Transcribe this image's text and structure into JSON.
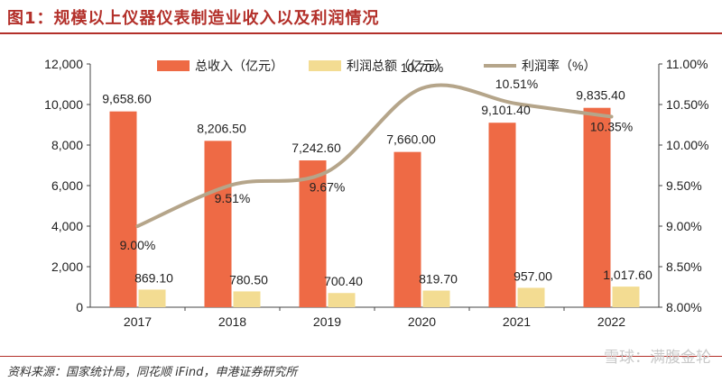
{
  "title": "图1：规模以上仪器仪表制造业收入以及利润情况",
  "source": "资料来源：国家统计局，同花顺 iFind，申港证券研究所",
  "watermark": "雪球：满腹金轮",
  "chart_data": {
    "type": "bar",
    "categories": [
      "2017",
      "2018",
      "2019",
      "2020",
      "2021",
      "2022"
    ],
    "series": [
      {
        "name": "总收入（亿元）",
        "type": "bar",
        "axis": "left",
        "color": "#ee6a45",
        "values": [
          9658.6,
          8206.5,
          7242.6,
          7660.0,
          9101.4,
          9835.4
        ],
        "labels": [
          "9,658.60",
          "8,206.50",
          "7,242.60",
          "7,660.00",
          "9,101.40",
          "9,835.40"
        ]
      },
      {
        "name": "利润总额（亿元）",
        "type": "bar",
        "axis": "left",
        "color": "#f3dc92",
        "values": [
          869.1,
          780.5,
          700.4,
          819.7,
          957.0,
          1017.6
        ],
        "labels": [
          "869.10",
          "780.50",
          "700.40",
          "819.70",
          "957.00",
          "1,017.60"
        ]
      },
      {
        "name": "利润率（%）",
        "type": "line",
        "axis": "right",
        "color": "#b5a58a",
        "values": [
          9.0,
          9.51,
          9.67,
          10.7,
          10.51,
          10.35
        ],
        "labels": [
          "9.00%",
          "9.51%",
          "9.67%",
          "10.70%",
          "10.51%",
          "10.35%"
        ]
      }
    ],
    "ylim_left": [
      0,
      12000
    ],
    "yticks_left": [
      "0",
      "2,000",
      "4,000",
      "6,000",
      "8,000",
      "10,000",
      "12,000"
    ],
    "ylim_right": [
      8.0,
      11.0
    ],
    "yticks_right": [
      "8.00%",
      "8.50%",
      "9.00%",
      "9.50%",
      "10.00%",
      "10.50%",
      "11.00%"
    ],
    "legend_position": "top",
    "grid": false
  }
}
